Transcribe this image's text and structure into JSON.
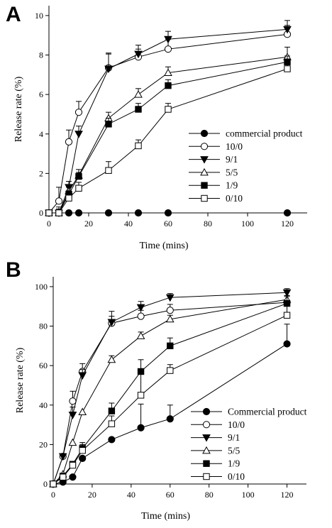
{
  "chart_data": [
    {
      "panel": "A",
      "type": "line",
      "xlabel": "Time (mins)",
      "ylabel": "Release rate (%)",
      "xlim": [
        0,
        130
      ],
      "ylim": [
        0,
        10.5
      ],
      "xticks": [
        0,
        20,
        40,
        60,
        80,
        100,
        120
      ],
      "yticks": [
        0,
        2,
        4,
        6,
        8,
        10
      ],
      "legend_position": "lower-right",
      "series": [
        {
          "name": "commercial product",
          "marker": "circle-filled",
          "x": [
            0,
            10,
            15,
            30,
            45,
            60,
            120
          ],
          "y": [
            0,
            0,
            0,
            0,
            0,
            0,
            0
          ],
          "err": [
            0,
            0,
            0,
            0,
            0,
            0,
            0
          ]
        },
        {
          "name": "10/0",
          "marker": "circle-open",
          "x": [
            0,
            5,
            10,
            15,
            30,
            45,
            60,
            120
          ],
          "y": [
            0,
            0.6,
            3.6,
            5.1,
            7.35,
            7.9,
            8.3,
            9.05
          ],
          "err": [
            0,
            0.7,
            0.6,
            0.55,
            0.7,
            0.4,
            0.5,
            0.45
          ]
        },
        {
          "name": "9/1",
          "marker": "triangle-down-filled",
          "x": [
            0,
            5,
            10,
            15,
            30,
            45,
            60,
            120
          ],
          "y": [
            0,
            0,
            1.3,
            4.0,
            7.3,
            8.05,
            8.8,
            9.3
          ],
          "err": [
            0,
            0.3,
            0.3,
            0.4,
            0.8,
            0.45,
            0.4,
            0.45
          ]
        },
        {
          "name": "5/5",
          "marker": "triangle-up-open",
          "x": [
            0,
            5,
            10,
            15,
            30,
            45,
            60,
            120
          ],
          "y": [
            0,
            0,
            1.1,
            1.9,
            4.8,
            6.0,
            7.1,
            7.9
          ],
          "err": [
            0,
            0.2,
            0.2,
            0.3,
            0.3,
            0.3,
            0.3,
            0.5
          ]
        },
        {
          "name": "1/9",
          "marker": "square-filled",
          "x": [
            0,
            5,
            10,
            15,
            30,
            45,
            60,
            120
          ],
          "y": [
            0,
            0,
            0.95,
            1.85,
            4.5,
            5.25,
            6.45,
            7.65
          ],
          "err": [
            0,
            0.1,
            0.2,
            0.2,
            0.3,
            0.3,
            0.3,
            0.3
          ]
        },
        {
          "name": "0/10",
          "marker": "square-open",
          "x": [
            0,
            5,
            10,
            15,
            30,
            45,
            60,
            120
          ],
          "y": [
            0,
            0,
            0.75,
            1.25,
            2.15,
            3.4,
            5.25,
            7.3
          ],
          "err": [
            0,
            0.1,
            0.2,
            0.3,
            0.45,
            0.3,
            0.3,
            0.3
          ]
        }
      ]
    },
    {
      "panel": "B",
      "type": "line",
      "xlabel": "Time (mins)",
      "ylabel": "Release rate (%)",
      "xlim": [
        0,
        130
      ],
      "ylim": [
        0,
        105
      ],
      "xticks": [
        0,
        20,
        40,
        60,
        80,
        100,
        120
      ],
      "yticks": [
        0,
        20,
        40,
        60,
        80,
        100
      ],
      "legend_position": "lower-right",
      "series": [
        {
          "name": "Commercial product",
          "marker": "circle-filled",
          "x": [
            0,
            5,
            10,
            15,
            30,
            45,
            60,
            120
          ],
          "y": [
            0,
            1,
            3.5,
            13,
            22.5,
            28.5,
            33,
            71
          ],
          "err": [
            0,
            0,
            0,
            0,
            0,
            12,
            7,
            10
          ]
        },
        {
          "name": "10/0",
          "marker": "circle-open",
          "x": [
            0,
            5,
            10,
            15,
            30,
            45,
            60,
            120
          ],
          "y": [
            0,
            14,
            42,
            57,
            81.5,
            85,
            88,
            92
          ],
          "err": [
            0,
            0,
            5,
            4,
            6,
            3,
            3,
            3
          ]
        },
        {
          "name": "9/1",
          "marker": "triangle-down-filled",
          "x": [
            0,
            5,
            10,
            15,
            30,
            45,
            60,
            120
          ],
          "y": [
            0,
            14,
            35,
            55,
            82,
            89.5,
            94.5,
            97
          ],
          "err": [
            0,
            0,
            4,
            3,
            3,
            3,
            2,
            2
          ]
        },
        {
          "name": "5/5",
          "marker": "triangle-up-open",
          "x": [
            0,
            5,
            10,
            15,
            30,
            45,
            60,
            120
          ],
          "y": [
            0,
            5,
            21,
            36.5,
            63,
            75,
            83.5,
            93.5
          ],
          "err": [
            0,
            0,
            0,
            0,
            2,
            2,
            2,
            2
          ]
        },
        {
          "name": "1/9",
          "marker": "square-filled",
          "x": [
            0,
            5,
            10,
            15,
            30,
            45,
            60,
            120
          ],
          "y": [
            0,
            4,
            10,
            18,
            37,
            57,
            70,
            91.5
          ],
          "err": [
            0,
            0,
            0,
            3,
            4,
            6,
            4,
            4
          ]
        },
        {
          "name": "0/10",
          "marker": "square-open",
          "x": [
            0,
            5,
            10,
            15,
            30,
            45,
            60,
            120
          ],
          "y": [
            0,
            3.5,
            9.5,
            17,
            30.5,
            45,
            57.5,
            85.5
          ],
          "err": [
            0,
            0,
            0,
            3,
            4,
            12,
            3,
            6
          ]
        }
      ]
    }
  ]
}
